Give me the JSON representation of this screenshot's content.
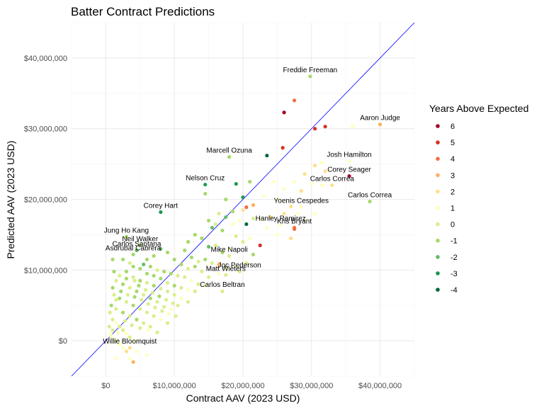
{
  "chart_data": {
    "type": "scatter",
    "title": "Batter Contract Predictions",
    "xlabel": "Contract AAV (2023 USD)",
    "ylabel": "Predicted AAV (2023 USD)",
    "xlim": [
      -5000000,
      45000000
    ],
    "ylim": [
      -5000000,
      45000000
    ],
    "x_ticks": [
      0,
      10000000,
      20000000,
      30000000,
      40000000
    ],
    "x_tick_labels": [
      "$0",
      "$10,000,000",
      "$20,000,000",
      "$30,000,000",
      "$40,000,000"
    ],
    "y_ticks": [
      0,
      10000000,
      20000000,
      30000000,
      40000000
    ],
    "y_tick_labels": [
      "$0",
      "$10,000,000",
      "$20,000,000",
      "$30,000,000",
      "$40,000,000"
    ],
    "grid": true,
    "reference_line": "y = x",
    "reference_line_color": "#0000ff",
    "legend": {
      "title": "Years Above Expected",
      "placement": "right",
      "entries": [
        {
          "label": "6",
          "value": 6,
          "color": "#a50026"
        },
        {
          "label": "5",
          "value": 5,
          "color": "#d73027"
        },
        {
          "label": "4",
          "value": 4,
          "color": "#f46d43"
        },
        {
          "label": "3",
          "value": 3,
          "color": "#fdae61"
        },
        {
          "label": "2",
          "value": 2,
          "color": "#fee08b"
        },
        {
          "label": "1",
          "value": 1,
          "color": "#ffffbf"
        },
        {
          "label": "0",
          "value": 0,
          "color": "#d9ef8b"
        },
        {
          "label": "-1",
          "value": -1,
          "color": "#a6d96a"
        },
        {
          "label": "-2",
          "value": -2,
          "color": "#66bd63"
        },
        {
          "label": "-3",
          "value": -3,
          "color": "#1a9850"
        },
        {
          "label": "-4",
          "value": -4,
          "color": "#006837"
        }
      ]
    },
    "labeled_points": [
      {
        "name": "Freddie Freeman",
        "x": 29800000,
        "y": 37400000,
        "years": -1
      },
      {
        "name": "Aaron Judge",
        "x": 40000000,
        "y": 30600000,
        "years": 3
      },
      {
        "name": "Marcell Ozuna",
        "x": 18000000,
        "y": 26000000,
        "years": -1
      },
      {
        "name": "Josh Hamilton",
        "x": 35500000,
        "y": 25400000,
        "years": 1
      },
      {
        "name": "Corey Seager",
        "x": 35500000,
        "y": 23300000,
        "years": 6
      },
      {
        "name": "Carlos Correa",
        "x": 33000000,
        "y": 22000000,
        "years": 2
      },
      {
        "name": "Nelson Cruz",
        "x": 14500000,
        "y": 22100000,
        "years": -3
      },
      {
        "name": "Carlos Correa",
        "x": 38500000,
        "y": 19700000,
        "years": -1
      },
      {
        "name": "Yoenis Cespedes",
        "x": 28500000,
        "y": 18900000,
        "years": 1
      },
      {
        "name": "Corey Hart",
        "x": 8000000,
        "y": 18200000,
        "years": -3
      },
      {
        "name": "Hanley Ramirez",
        "x": 25500000,
        "y": 16400000,
        "years": 1
      },
      {
        "name": "Kris Bryant",
        "x": 27500000,
        "y": 16000000,
        "years": 4
      },
      {
        "name": "Jung Ho Kang",
        "x": 3000000,
        "y": 14700000,
        "years": -1
      },
      {
        "name": "Neil Walker",
        "x": 5000000,
        "y": 13500000,
        "years": -1
      },
      {
        "name": "Carlos Santana",
        "x": 4500000,
        "y": 12800000,
        "years": -2
      },
      {
        "name": "Asdrubal Cabrera",
        "x": 4000000,
        "y": 12200000,
        "years": -1
      },
      {
        "name": "Mike Napoli",
        "x": 18000000,
        "y": 12000000,
        "years": 0
      },
      {
        "name": "Joc Pederson",
        "x": 19500000,
        "y": 9800000,
        "years": 0
      },
      {
        "name": "Matt Wieters",
        "x": 17500000,
        "y": 9300000,
        "years": 0
      },
      {
        "name": "Carlos Beltran",
        "x": 17000000,
        "y": 7000000,
        "years": 0
      },
      {
        "name": "Willie Bloomquist",
        "x": 3500000,
        "y": -1000000,
        "years": 2
      }
    ],
    "points": [
      [
        26000000,
        32300000,
        6
      ],
      [
        27500000,
        34000000,
        4
      ],
      [
        30500000,
        30000000,
        5
      ],
      [
        32000000,
        30300000,
        5
      ],
      [
        36000000,
        30400000,
        1
      ],
      [
        25800000,
        27300000,
        5
      ],
      [
        23500000,
        26200000,
        -4
      ],
      [
        19000000,
        22200000,
        -3
      ],
      [
        21000000,
        22500000,
        -1
      ],
      [
        14500000,
        20800000,
        -1
      ],
      [
        17500000,
        20000000,
        -1
      ],
      [
        20000000,
        20300000,
        -3
      ],
      [
        21500000,
        19200000,
        3
      ],
      [
        20500000,
        18900000,
        4
      ],
      [
        20000000,
        18500000,
        2
      ],
      [
        18500000,
        18300000,
        -1
      ],
      [
        16500000,
        18000000,
        0
      ],
      [
        17500000,
        17500000,
        -2
      ],
      [
        19500000,
        17000000,
        1
      ],
      [
        21500000,
        17300000,
        0
      ],
      [
        15000000,
        17000000,
        -1
      ],
      [
        16000000,
        16500000,
        0
      ],
      [
        15500000,
        16000000,
        -2
      ],
      [
        17000000,
        15600000,
        -1
      ],
      [
        18500000,
        16500000,
        1
      ],
      [
        20500000,
        16500000,
        -4
      ],
      [
        22500000,
        17200000,
        1
      ],
      [
        24000000,
        17500000,
        2
      ],
      [
        26000000,
        18000000,
        2
      ],
      [
        27000000,
        19000000,
        2
      ],
      [
        28500000,
        21200000,
        2
      ],
      [
        30000000,
        22200000,
        1
      ],
      [
        31500000,
        22000000,
        1
      ],
      [
        32000000,
        24000000,
        2
      ],
      [
        31500000,
        25200000,
        1
      ],
      [
        30500000,
        24800000,
        2
      ],
      [
        29000000,
        23600000,
        2
      ],
      [
        27500000,
        22500000,
        1
      ],
      [
        26000000,
        21500000,
        1
      ],
      [
        24500000,
        22500000,
        1
      ],
      [
        23000000,
        20500000,
        1
      ],
      [
        25000000,
        20000000,
        1
      ],
      [
        28000000,
        18000000,
        1
      ],
      [
        29000000,
        17000000,
        1
      ],
      [
        27500000,
        15800000,
        4
      ],
      [
        30500000,
        18000000,
        1
      ],
      [
        27000000,
        14500000,
        2
      ],
      [
        25000000,
        15000000,
        1
      ],
      [
        23500000,
        16000000,
        1
      ],
      [
        22500000,
        13500000,
        5
      ],
      [
        21000000,
        14500000,
        1
      ],
      [
        20000000,
        14000000,
        0
      ],
      [
        19000000,
        14800000,
        0
      ],
      [
        18000000,
        13000000,
        1
      ],
      [
        17000000,
        12500000,
        -1
      ],
      [
        16000000,
        13500000,
        0
      ],
      [
        15000000,
        13300000,
        -2
      ],
      [
        14000000,
        14500000,
        -1
      ],
      [
        13000000,
        15000000,
        -1
      ],
      [
        12000000,
        14000000,
        -1
      ],
      [
        11500000,
        12800000,
        -1
      ],
      [
        12500000,
        11800000,
        -1
      ],
      [
        13500000,
        11200000,
        0
      ],
      [
        14500000,
        11500000,
        -1
      ],
      [
        15500000,
        11000000,
        0
      ],
      [
        16500000,
        10800000,
        3
      ],
      [
        17500000,
        10300000,
        1
      ],
      [
        19000000,
        10500000,
        1
      ],
      [
        20500000,
        11000000,
        0
      ],
      [
        21500000,
        12200000,
        -1
      ],
      [
        16500000,
        9500000,
        1
      ],
      [
        15000000,
        9000000,
        0
      ],
      [
        14000000,
        9800000,
        0
      ],
      [
        13000000,
        10500000,
        -1
      ],
      [
        12000000,
        10200000,
        0
      ],
      [
        11000000,
        10800000,
        -1
      ],
      [
        10000000,
        11500000,
        -1
      ],
      [
        9000000,
        12500000,
        -1
      ],
      [
        8000000,
        13000000,
        -2
      ],
      [
        7000000,
        12000000,
        -1
      ],
      [
        6000000,
        11500000,
        -1
      ],
      [
        5500000,
        10800000,
        -2
      ],
      [
        6500000,
        10500000,
        -1
      ],
      [
        7500000,
        10000000,
        0
      ],
      [
        8500000,
        9800000,
        -1
      ],
      [
        9500000,
        9500000,
        -1
      ],
      [
        10500000,
        9200000,
        0
      ],
      [
        11500000,
        9000000,
        0
      ],
      [
        12500000,
        8500000,
        1
      ],
      [
        13500000,
        8000000,
        0
      ],
      [
        14500000,
        7800000,
        1
      ],
      [
        13000000,
        7000000,
        0
      ],
      [
        12000000,
        7200000,
        1
      ],
      [
        11000000,
        7500000,
        0
      ],
      [
        10000000,
        7800000,
        -1
      ],
      [
        9000000,
        8200000,
        0
      ],
      [
        8000000,
        8800000,
        -1
      ],
      [
        7000000,
        9200000,
        -1
      ],
      [
        6000000,
        9500000,
        -1
      ],
      [
        5000000,
        10200000,
        -1
      ],
      [
        4000000,
        10500000,
        -1
      ],
      [
        3500000,
        11000000,
        0
      ],
      [
        2500000,
        11500000,
        -1
      ],
      [
        1000000,
        11500000,
        -1
      ],
      [
        1200000,
        9800000,
        -1
      ],
      [
        2000000,
        9200000,
        0
      ],
      [
        3000000,
        8800000,
        -1
      ],
      [
        4000000,
        9000000,
        0
      ],
      [
        5000000,
        8500000,
        -1
      ],
      [
        6000000,
        8200000,
        0
      ],
      [
        7000000,
        7800000,
        -1
      ],
      [
        8000000,
        7400000,
        0
      ],
      [
        9000000,
        7000000,
        0
      ],
      [
        10000000,
        6500000,
        0
      ],
      [
        11000000,
        6000000,
        1
      ],
      [
        12000000,
        5500000,
        0
      ],
      [
        10500000,
        5000000,
        0
      ],
      [
        9500000,
        4500000,
        1
      ],
      [
        8500000,
        4800000,
        0
      ],
      [
        7500000,
        5500000,
        0
      ],
      [
        6500000,
        6000000,
        -1
      ],
      [
        5500000,
        6500000,
        0
      ],
      [
        4500000,
        7000000,
        -1
      ],
      [
        3500000,
        7500000,
        0
      ],
      [
        2500000,
        8000000,
        -1
      ],
      [
        1500000,
        8500000,
        0
      ],
      [
        1000000,
        7500000,
        -1
      ],
      [
        1200000,
        6500000,
        0
      ],
      [
        2000000,
        6000000,
        -1
      ],
      [
        3000000,
        5500000,
        0
      ],
      [
        4000000,
        5000000,
        -1
      ],
      [
        5000000,
        4500000,
        0
      ],
      [
        6000000,
        4000000,
        0
      ],
      [
        7000000,
        3500000,
        0
      ],
      [
        8000000,
        3000000,
        1
      ],
      [
        9000000,
        2500000,
        0
      ],
      [
        6500000,
        2000000,
        0
      ],
      [
        5500000,
        2500000,
        0
      ],
      [
        4500000,
        3000000,
        -1
      ],
      [
        3500000,
        3500000,
        0
      ],
      [
        2500000,
        4000000,
        -1
      ],
      [
        1500000,
        4500000,
        0
      ],
      [
        800000,
        5000000,
        -1
      ],
      [
        600000,
        4000000,
        0
      ],
      [
        1000000,
        3000000,
        0
      ],
      [
        1500000,
        2500000,
        1
      ],
      [
        2000000,
        2000000,
        0
      ],
      [
        2500000,
        1500000,
        0
      ],
      [
        3000000,
        1000000,
        1
      ],
      [
        3500000,
        500000,
        0
      ],
      [
        4000000,
        0,
        1
      ],
      [
        1000000,
        1500000,
        0
      ],
      [
        700000,
        1000000,
        1
      ],
      [
        500000,
        2000000,
        0
      ],
      [
        800000,
        500000,
        1
      ],
      [
        1500000,
        0,
        0
      ],
      [
        2000000,
        -500000,
        1
      ],
      [
        2500000,
        -1000000,
        1
      ],
      [
        3000000,
        -1500000,
        2
      ],
      [
        4500000,
        -1500000,
        1
      ],
      [
        3500000,
        -2500000,
        1
      ],
      [
        4000000,
        -3000000,
        3
      ],
      [
        1500000,
        -2500000,
        1
      ],
      [
        6000000,
        -2000000,
        1
      ],
      [
        1500000,
        5800000,
        0
      ],
      [
        2200000,
        7000000,
        -1
      ],
      [
        3200000,
        6500000,
        0
      ],
      [
        4200000,
        6200000,
        -1
      ],
      [
        5200000,
        5800000,
        0
      ],
      [
        6200000,
        5200000,
        0
      ],
      [
        7200000,
        4700000,
        0
      ],
      [
        8200000,
        4200000,
        0
      ],
      [
        9200000,
        3800000,
        1
      ],
      [
        10200000,
        3500000,
        0
      ],
      [
        4800000,
        7800000,
        -1
      ],
      [
        5800000,
        7200000,
        0
      ],
      [
        6800000,
        6800000,
        0
      ],
      [
        7800000,
        6300000,
        -1
      ],
      [
        8800000,
        5800000,
        0
      ],
      [
        9800000,
        5300000,
        0
      ],
      [
        3000000,
        9800000,
        -1
      ],
      [
        4200000,
        8500000,
        0
      ],
      [
        2800000,
        2800000,
        0
      ],
      [
        3800000,
        2200000,
        0
      ],
      [
        5000000,
        1800000,
        0
      ],
      [
        6200000,
        1500000,
        1
      ],
      [
        7500000,
        1200000,
        0
      ],
      [
        1800000,
        1200000,
        1
      ]
    ]
  }
}
